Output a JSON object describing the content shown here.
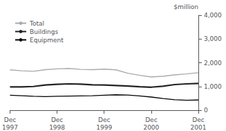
{
  "chart_data": {
    "type": "line",
    "ylabel": "$million",
    "categories": [
      "Dec\n1997",
      null,
      null,
      null,
      "Dec\n1998",
      null,
      null,
      null,
      "Dec\n1999",
      null,
      null,
      null,
      "Dec\n2000",
      null,
      null,
      null,
      "Dec\n2001"
    ],
    "series": [
      {
        "name": "Total",
        "color": "#aaaaaa",
        "values": [
          1700,
          1660,
          1640,
          1710,
          1740,
          1760,
          1720,
          1710,
          1730,
          1700,
          1560,
          1470,
          1400,
          1430,
          1490,
          1530,
          1580
        ]
      },
      {
        "name": "Buildings",
        "color": "#222222",
        "values": [
          980,
          980,
          1000,
          1060,
          1090,
          1110,
          1100,
          1070,
          1060,
          1040,
          1020,
          990,
          970,
          1010,
          1080,
          1110,
          1130
        ]
      },
      {
        "name": "Equipment",
        "color": "#000000",
        "values": [
          630,
          610,
          590,
          575,
          585,
          595,
          605,
          610,
          630,
          650,
          640,
          600,
          555,
          490,
          440,
          420,
          430
        ]
      }
    ],
    "ylim": [
      0,
      4000
    ],
    "yticks": [
      0,
      1000,
      2000,
      3000,
      4000
    ],
    "grid": false,
    "legend": "upper left"
  }
}
